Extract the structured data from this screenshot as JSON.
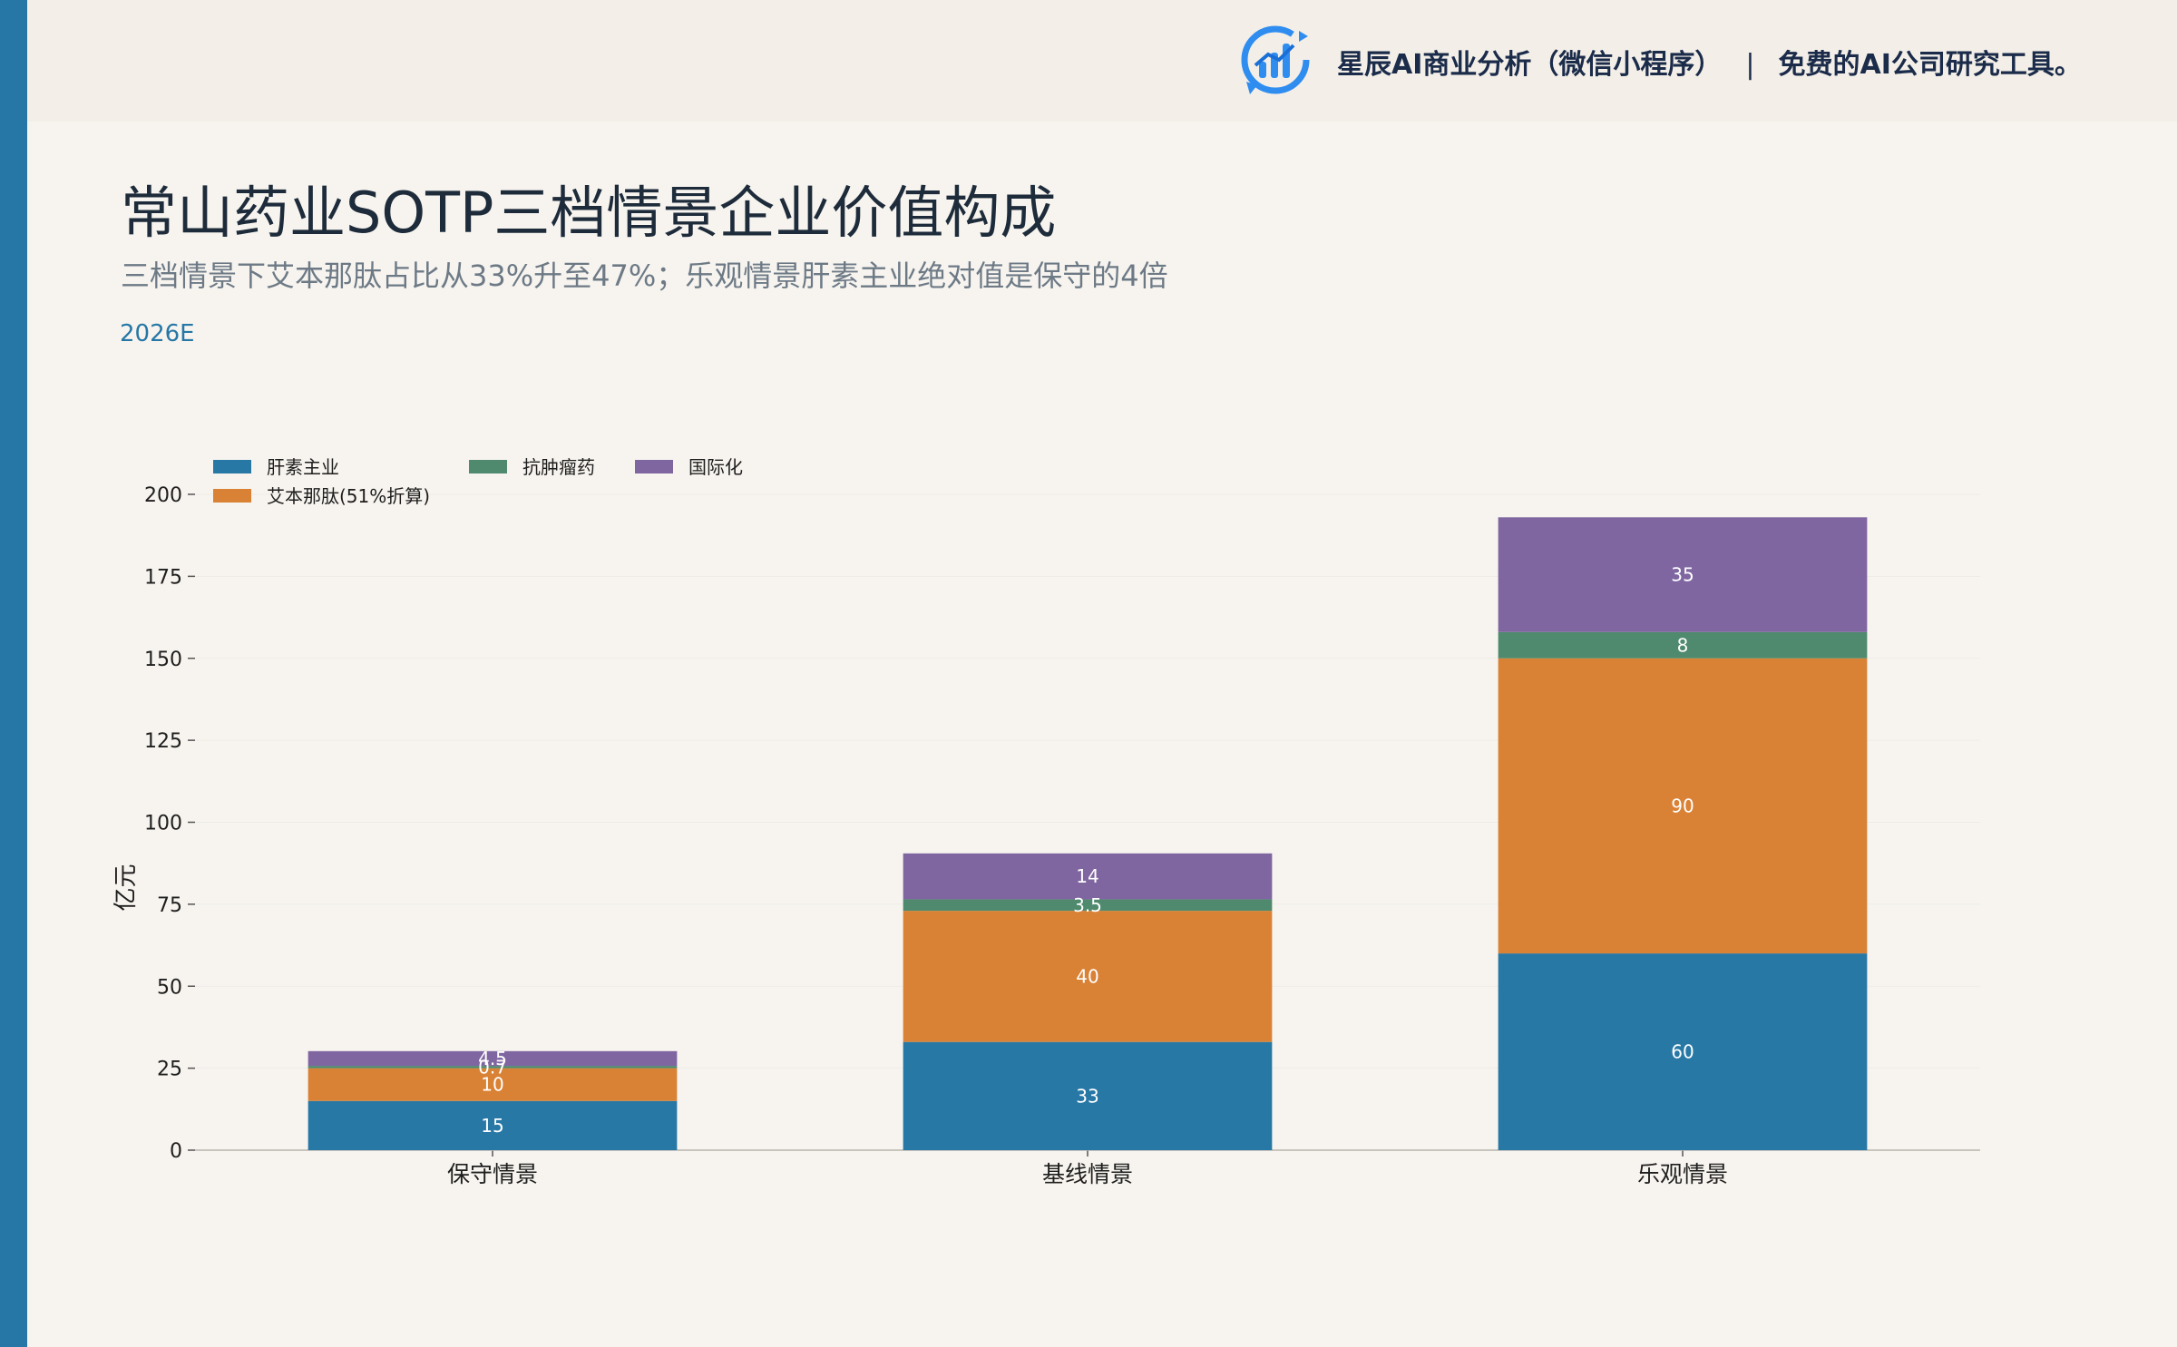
{
  "header": {
    "brand_text": "星辰AI商业分析（微信小程序）",
    "separator": "|",
    "tagline": "免费的AI公司研究工具。"
  },
  "page": {
    "title": "常山药业SOTP三档情景企业价值构成",
    "subtitle": "三档情景下艾本那肽占比从33%升至47%；乐观情景肝素主业绝对值是保守的4倍",
    "period": "2026E"
  },
  "colors": {
    "accent": "#2677a6",
    "liver": "#2878a6",
    "aiben": "#d98236",
    "anticancer": "#4f8a6e",
    "intl": "#7f66a1"
  },
  "chart_data": {
    "type": "bar",
    "stacked": true,
    "categories": [
      "保守情景",
      "基线情景",
      "乐观情景"
    ],
    "series": [
      {
        "name": "肝素主业",
        "color": "#2878a6",
        "values": [
          15,
          33,
          60
        ]
      },
      {
        "name": "艾本那肽(51%折算)",
        "color": "#d98236",
        "values": [
          10,
          40,
          90
        ]
      },
      {
        "name": "抗肿瘤药",
        "color": "#4f8a6e",
        "values": [
          0.7,
          3.5,
          8
        ]
      },
      {
        "name": "国际化",
        "color": "#7f66a1",
        "values": [
          4.5,
          14,
          35
        ]
      }
    ],
    "ylabel": "亿元",
    "xlabel": "",
    "ylim": [
      0,
      200
    ],
    "yticks": [
      0,
      25,
      50,
      75,
      100,
      125,
      150,
      175,
      200
    ],
    "grid": true,
    "legend_position": "top-left"
  }
}
